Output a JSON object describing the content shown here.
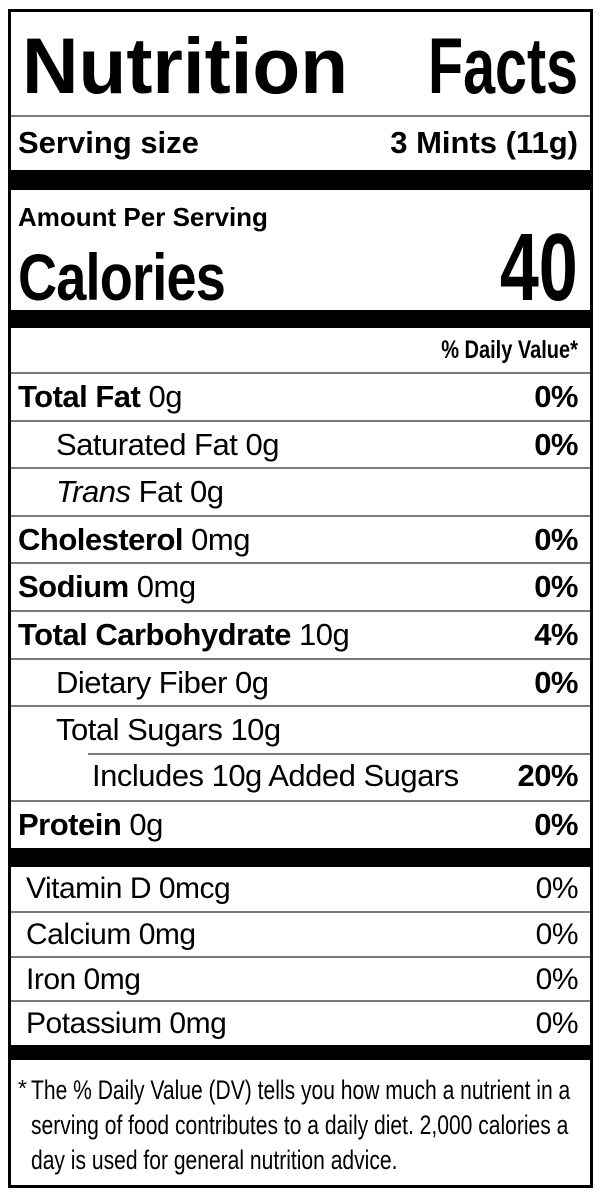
{
  "title": {
    "word1": "Nutrition",
    "word2": "Facts"
  },
  "serving": {
    "label": "Serving size",
    "value": "3 Mints (11g)"
  },
  "amount_per_serving": "Amount Per Serving",
  "calories": {
    "label": "Calories",
    "value": "40"
  },
  "daily_value_header": "% Daily Value*",
  "nutrients": [
    {
      "name": "Total Fat",
      "amount": " 0g",
      "dv": "0%"
    },
    {
      "name": "Saturated Fat",
      "amount": " 0g",
      "dv": "0%"
    },
    {
      "name": "Trans",
      "amount": " Fat 0g",
      "dv": ""
    },
    {
      "name": "Cholesterol",
      "amount": " 0mg",
      "dv": "0%"
    },
    {
      "name": "Sodium",
      "amount": " 0mg",
      "dv": "0%"
    },
    {
      "name": "Total Carbohydrate",
      "amount": " 10g",
      "dv": "4%"
    },
    {
      "name": "Dietary Fiber",
      "amount": " 0g",
      "dv": "0%"
    },
    {
      "name": "Total Sugars",
      "amount": " 10g",
      "dv": ""
    },
    {
      "name": "Includes 10g Added Sugars",
      "amount": "",
      "dv": "20%"
    },
    {
      "name": "Protein",
      "amount": " 0g",
      "dv": "0%"
    }
  ],
  "vitamins": [
    {
      "name": "Vitamin D 0mcg",
      "dv": "0%"
    },
    {
      "name": "Calcium 0mg",
      "dv": "0%"
    },
    {
      "name": "Iron 0mg",
      "dv": "0%"
    },
    {
      "name": "Potassium 0mg",
      "dv": "0%"
    }
  ],
  "footnote": {
    "asterisk": "*",
    "lines": [
      "The % Daily Value (DV) tells you how much a nutrient in a",
      "serving of food contributes to a daily diet. 2,000 calories a",
      "day is used for general nutrition advice."
    ]
  },
  "colors": {
    "text": "#000000",
    "divider": "#7b7b7b",
    "background": "#ffffff"
  }
}
